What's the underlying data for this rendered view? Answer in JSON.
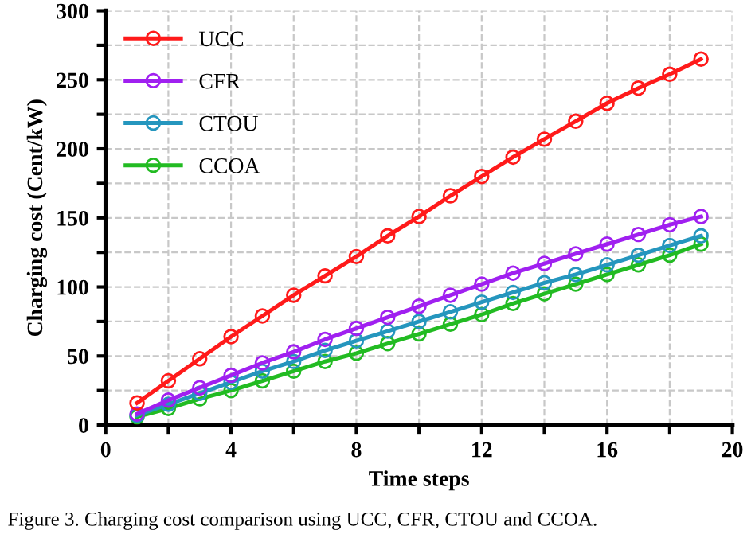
{
  "chart_data": {
    "type": "line",
    "xlabel": "Time steps",
    "ylabel": "Charging cost (Cent/kW)",
    "x": [
      1,
      2,
      3,
      4,
      5,
      6,
      7,
      8,
      9,
      10,
      11,
      12,
      13,
      14,
      15,
      16,
      17,
      18,
      19
    ],
    "series": [
      {
        "name": "UCC",
        "color": "#ff1a1a",
        "values": [
          16,
          32,
          48,
          64,
          79,
          94,
          108,
          122,
          137,
          151,
          166,
          180,
          194,
          207,
          220,
          233,
          244,
          254,
          265
        ]
      },
      {
        "name": "CFR",
        "color": "#a020f0",
        "values": [
          8,
          18,
          27,
          36,
          45,
          53,
          62,
          70,
          78,
          86,
          94,
          102,
          110,
          117,
          124,
          131,
          138,
          145,
          151
        ]
      },
      {
        "name": "CTOU",
        "color": "#2596be",
        "values": [
          7,
          15,
          23,
          31,
          39,
          46,
          54,
          61,
          68,
          75,
          82,
          89,
          96,
          103,
          109,
          116,
          123,
          130,
          137
        ]
      },
      {
        "name": "CCOA",
        "color": "#22bb22",
        "values": [
          6,
          12,
          19,
          25,
          32,
          39,
          46,
          52,
          59,
          66,
          73,
          80,
          88,
          95,
          102,
          109,
          116,
          123,
          131
        ]
      }
    ],
    "xlim": [
      0,
      20
    ],
    "ylim": [
      0,
      300
    ],
    "xticks": [
      0,
      {
        "value": 2,
        "label": null
      },
      4,
      {
        "value": 6,
        "label": null
      },
      8,
      {
        "value": 10,
        "label": null
      },
      12,
      {
        "value": 14,
        "label": null
      },
      16,
      {
        "value": 18,
        "label": null
      },
      20
    ],
    "yticks": [
      0,
      {
        "value": 25,
        "label": null
      },
      50,
      {
        "value": 75,
        "label": null
      },
      100,
      {
        "value": 125,
        "label": null
      },
      150,
      {
        "value": 175,
        "label": null
      },
      200,
      {
        "value": 225,
        "label": null
      },
      250,
      {
        "value": 275,
        "label": null
      },
      300
    ],
    "grid": true,
    "legend": "top left",
    "marker": "circle",
    "line_style": "solid",
    "annotations": [
      "Figure 3. Charging cost comparison using UCC, CFR, CTOU and CCOA."
    ]
  }
}
